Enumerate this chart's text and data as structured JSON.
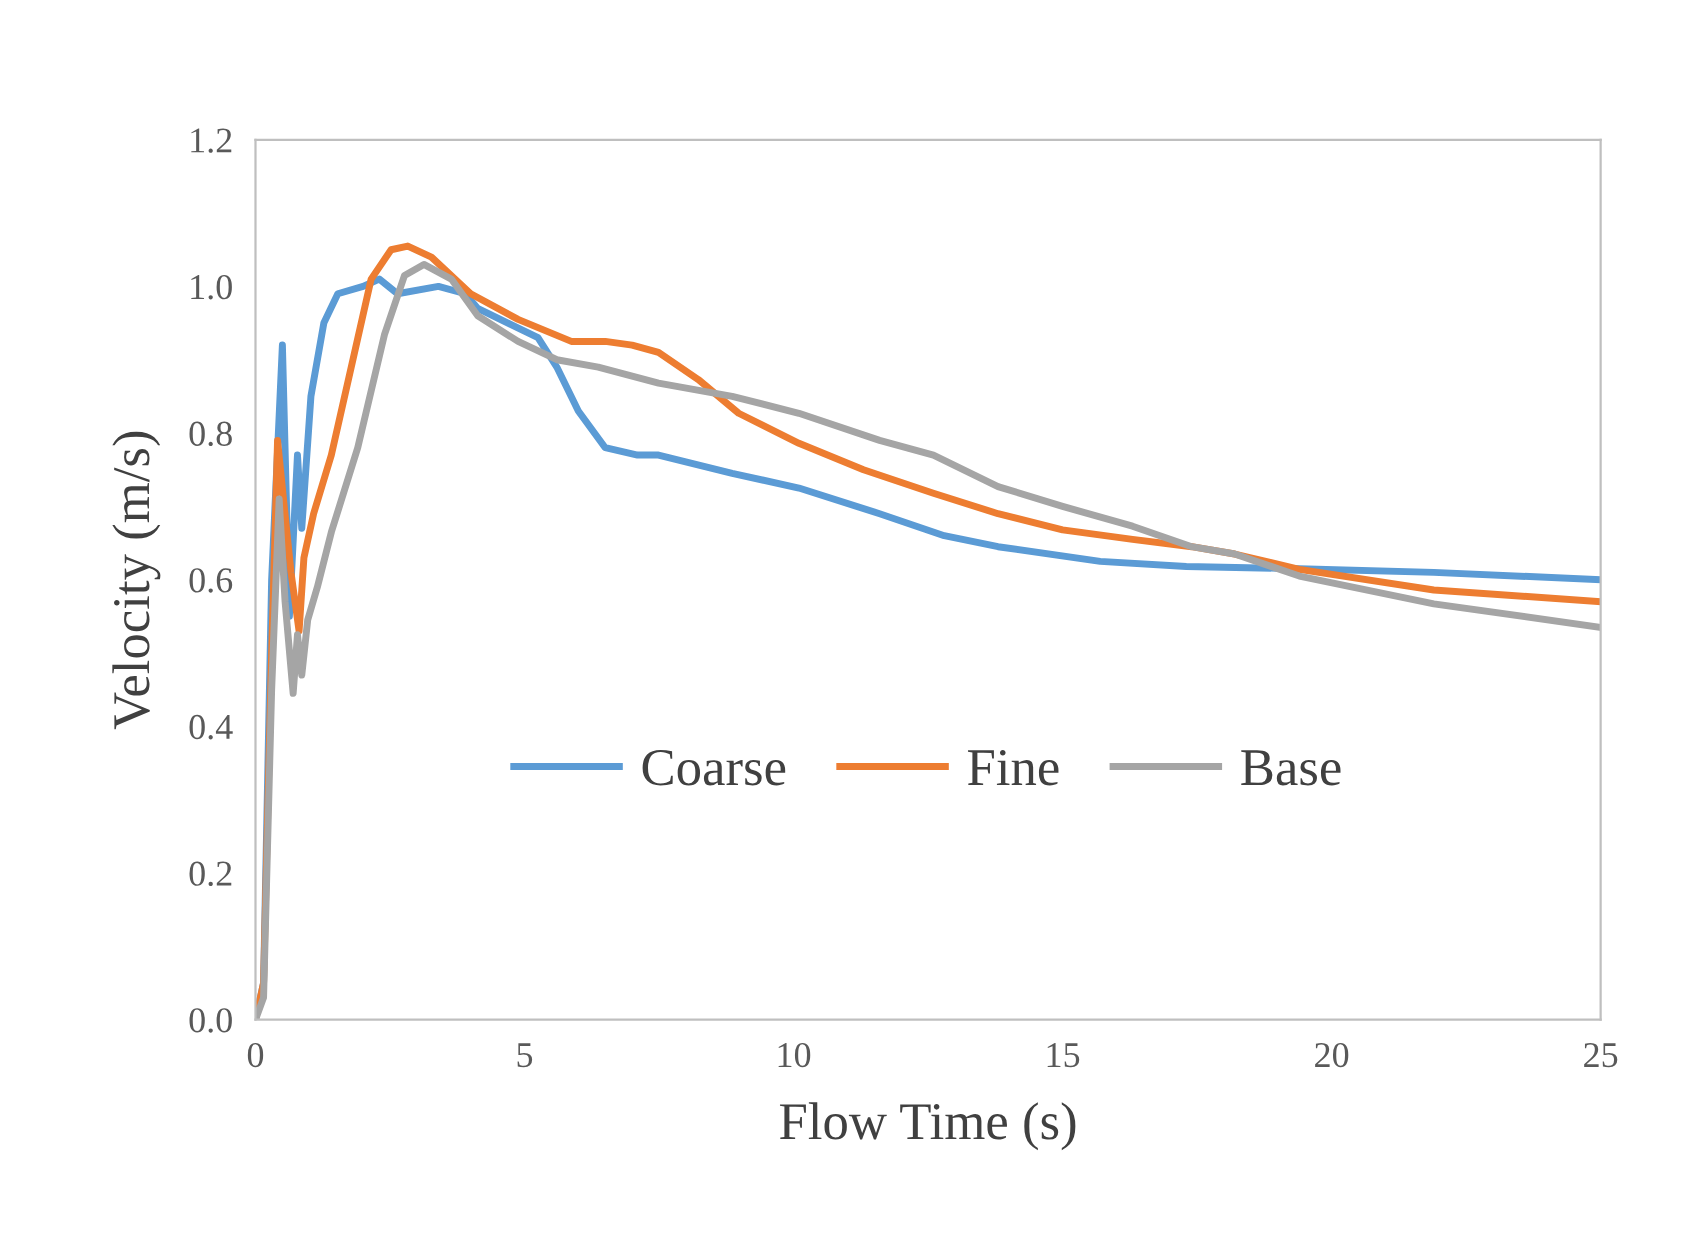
{
  "chart_data": {
    "type": "line",
    "xlabel": "Flow Time (s)",
    "ylabel": "Velocity (m/s)",
    "xlim": [
      0,
      25
    ],
    "xticks": [
      0,
      5,
      10,
      15,
      20,
      25
    ],
    "ylim": [
      0,
      1.2
    ],
    "yticks": [
      {
        "value": 0,
        "label": "0.0"
      },
      {
        "value": 0.2,
        "label": "0.2"
      },
      {
        "value": 0.4,
        "label": "0.4"
      },
      {
        "value": 0.6,
        "label": "0.6"
      },
      {
        "value": 0.8,
        "label": "0.8"
      },
      {
        "value": 1.0,
        "label": "1.0"
      },
      {
        "value": 1.2,
        "label": "1.2"
      }
    ],
    "grid": false,
    "legend": "bottom",
    "marker": "none",
    "line_style": "solid",
    "series": [
      {
        "name": "Coarse",
        "color": "#5b9bd5",
        "x": [
          0,
          0.15,
          0.3,
          0.5,
          0.63,
          0.78,
          0.86,
          1.03,
          1.27,
          1.53,
          2.0,
          2.3,
          2.64,
          3.4,
          3.9,
          4.13,
          5.25,
          5.6,
          6.0,
          6.5,
          7.1,
          7.49,
          8.86,
          10.1,
          11.6,
          12.8,
          13.8,
          15.7,
          17.3,
          19.4,
          21.9,
          25
        ],
        "values": [
          0,
          0.05,
          0.6,
          0.92,
          0.55,
          0.77,
          0.67,
          0.85,
          0.95,
          0.99,
          1.0,
          1.01,
          0.99,
          1.0,
          0.99,
          0.97,
          0.93,
          0.89,
          0.83,
          0.78,
          0.77,
          0.77,
          0.745,
          0.725,
          0.69,
          0.66,
          0.645,
          0.625,
          0.618,
          0.615,
          0.61,
          0.6
        ]
      },
      {
        "name": "Fine",
        "color": "#ed7d31",
        "x": [
          0,
          0.15,
          0.3,
          0.41,
          0.52,
          0.66,
          0.81,
          0.9,
          1.08,
          1.41,
          1.78,
          2.15,
          2.52,
          2.83,
          3.27,
          4.0,
          4.88,
          5.87,
          6.5,
          7.0,
          7.49,
          8.23,
          8.98,
          10.1,
          11.3,
          12.6,
          13.8,
          15.0,
          16.3,
          17.4,
          18.2,
          19.4,
          21.9,
          25
        ],
        "values": [
          0,
          0.05,
          0.5,
          0.79,
          0.71,
          0.61,
          0.53,
          0.63,
          0.69,
          0.77,
          0.89,
          1.01,
          1.05,
          1.055,
          1.04,
          0.99,
          0.955,
          0.925,
          0.925,
          0.92,
          0.91,
          0.873,
          0.827,
          0.786,
          0.75,
          0.718,
          0.69,
          0.668,
          0.655,
          0.645,
          0.635,
          0.614,
          0.586,
          0.57
        ]
      },
      {
        "name": "Base",
        "color": "#a5a5a5",
        "x": [
          0,
          0.15,
          0.3,
          0.44,
          0.55,
          0.7,
          0.78,
          0.86,
          0.97,
          1.15,
          1.41,
          1.9,
          2.4,
          2.77,
          3.13,
          3.64,
          4.13,
          4.88,
          5.6,
          6.37,
          7.49,
          8.86,
          10.1,
          11.6,
          12.6,
          13.8,
          15.0,
          16.3,
          17.4,
          18.2,
          19.4,
          21.9,
          25
        ],
        "values": [
          0,
          0.03,
          0.45,
          0.71,
          0.57,
          0.445,
          0.525,
          0.47,
          0.545,
          0.59,
          0.665,
          0.78,
          0.935,
          1.015,
          1.03,
          1.01,
          0.96,
          0.925,
          0.9,
          0.89,
          0.868,
          0.85,
          0.827,
          0.79,
          0.77,
          0.727,
          0.7,
          0.673,
          0.645,
          0.635,
          0.605,
          0.567,
          0.535
        ]
      }
    ]
  }
}
